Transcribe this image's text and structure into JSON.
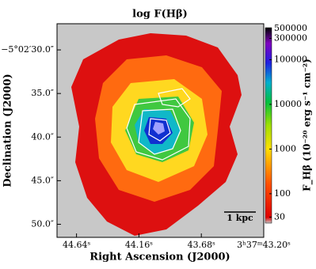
{
  "chart_data": {
    "type": "image",
    "title": "log F(Hβ)",
    "x_label": "Right Ascension (J2000)",
    "y_label": "Declination (J2000)",
    "xlim": [
      44.79,
      43.2
    ],
    "xticks": [
      {
        "value": 44.64,
        "label": "44.64ˢ"
      },
      {
        "value": 44.16,
        "label": "44.16ˢ"
      },
      {
        "value": 43.68,
        "label": "43.68ˢ"
      },
      {
        "value": 43.2,
        "label": "3ʰ37ᵐ43.20ˢ"
      }
    ],
    "ylim": [
      27.0,
      51.5
    ],
    "yticks": [
      {
        "value": 30,
        "label": "−5°02′30.0″"
      },
      {
        "value": 35,
        "label": "35.0″"
      },
      {
        "value": 40,
        "label": "40.0″"
      },
      {
        "value": 45,
        "label": "45.0″"
      },
      {
        "value": 50,
        "label": "50.0″"
      }
    ],
    "colorbar_label": "F_Hβ (10⁻²⁰ erg s⁻¹ cm⁻²)",
    "clim": [
      22,
      520000
    ],
    "clog": true,
    "cticks": [
      30,
      100,
      1000,
      10000,
      100000,
      300000,
      500000
    ],
    "scale_bar": "1 kpc"
  }
}
